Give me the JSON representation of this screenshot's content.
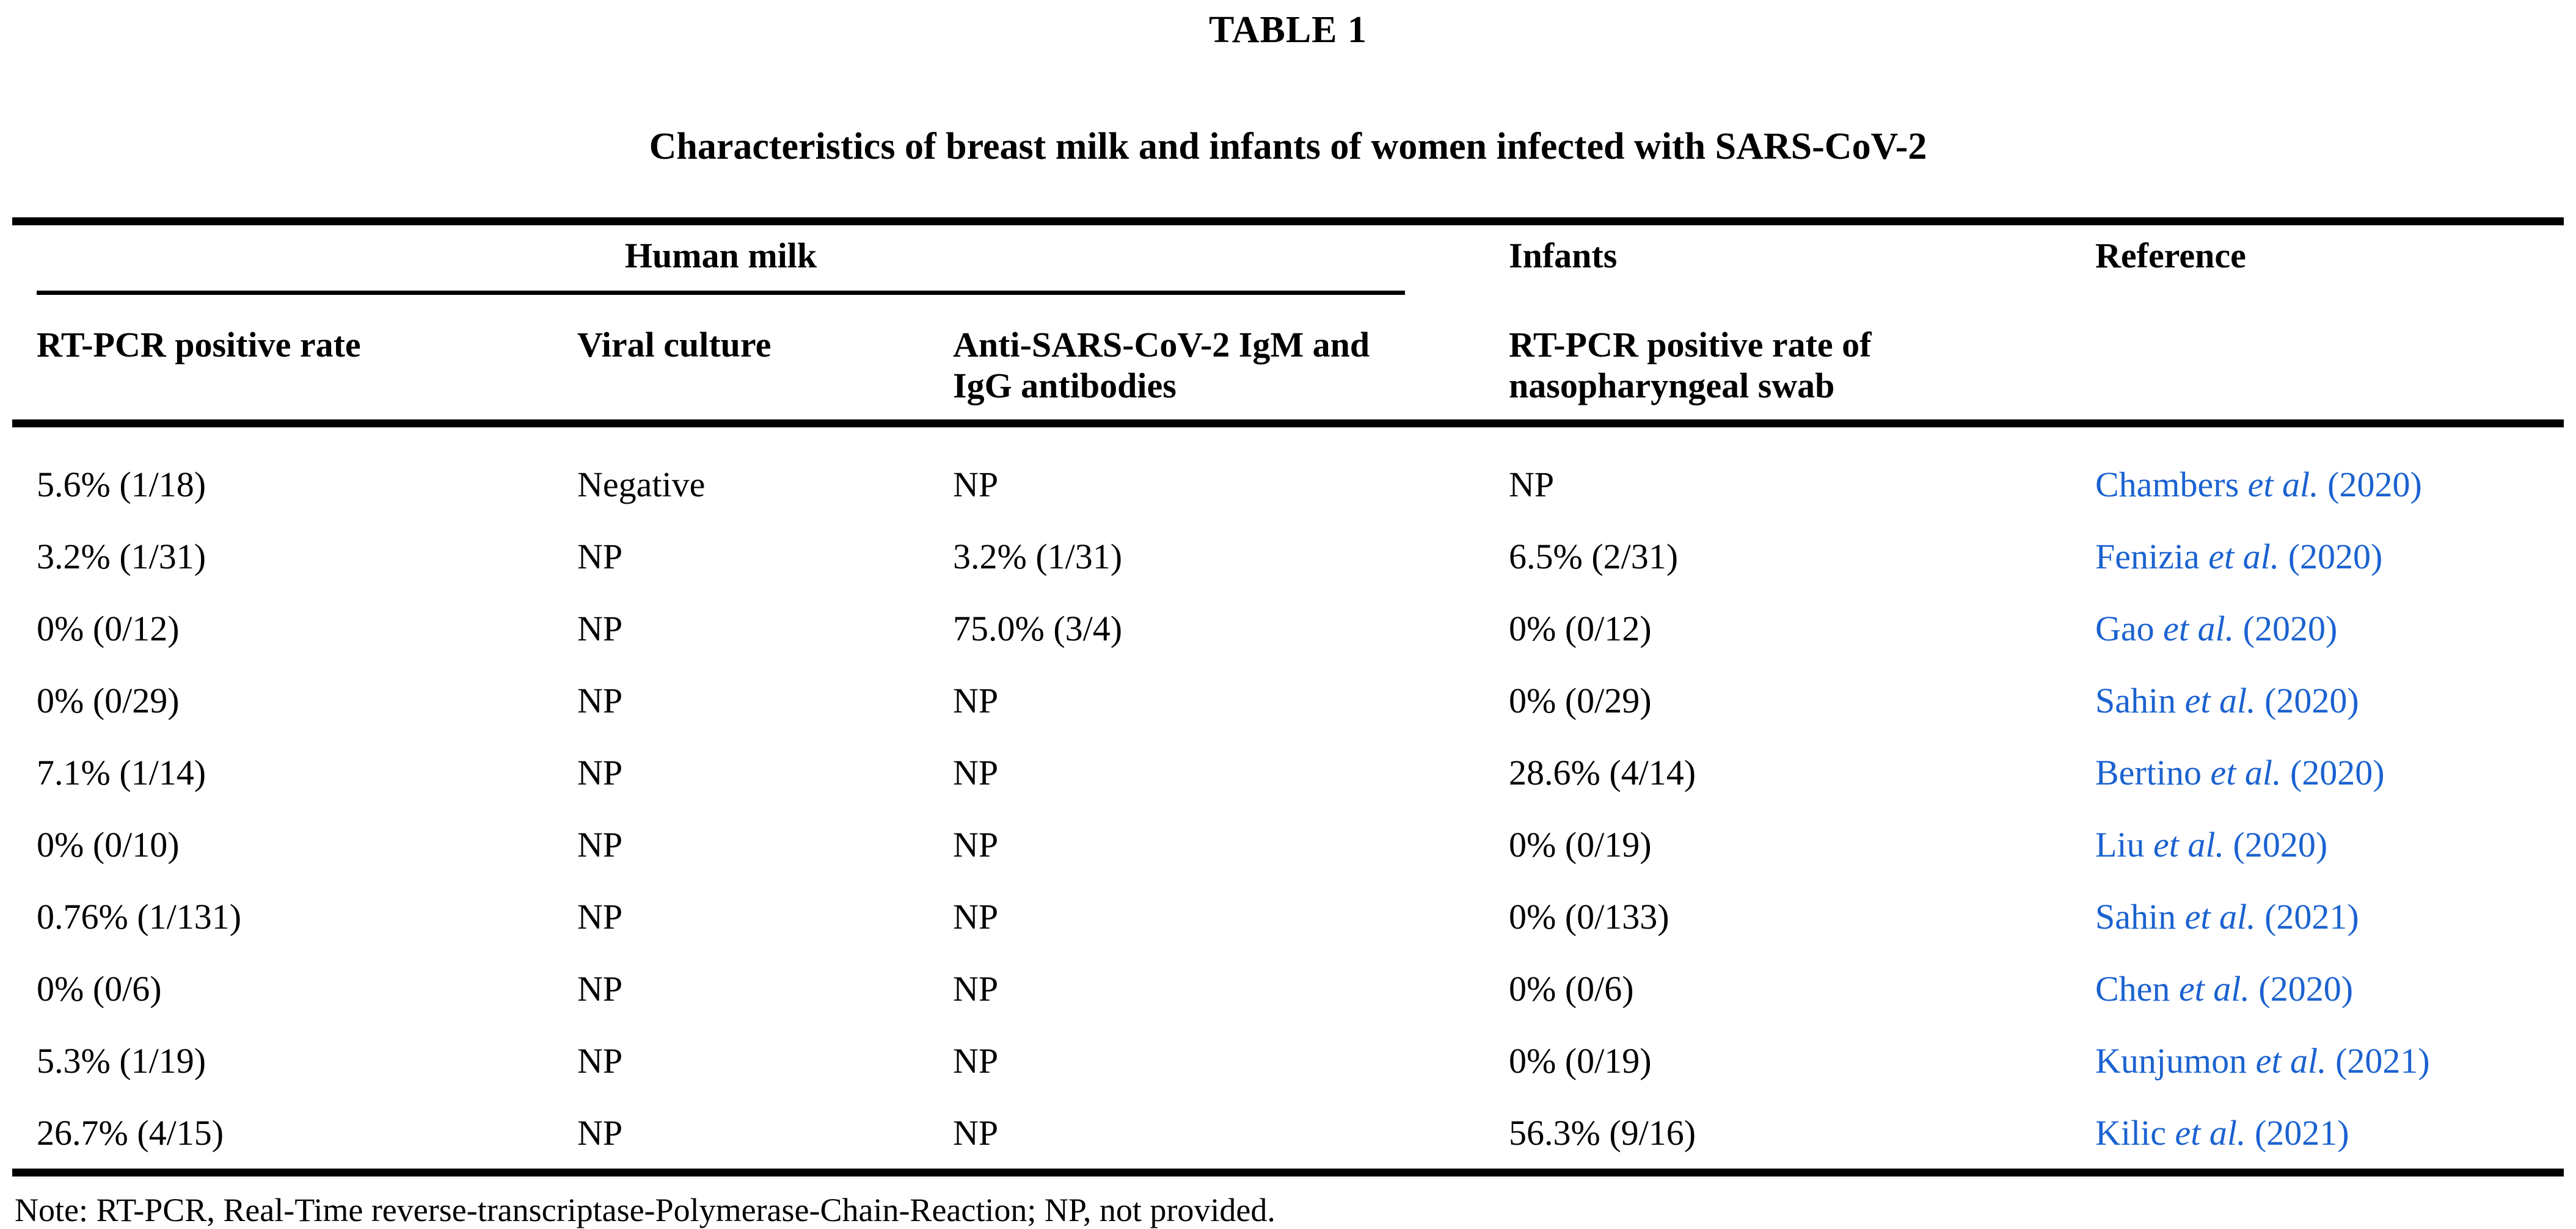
{
  "page": {
    "title": "TABLE 1",
    "caption": "Characteristics of breast milk and infants of women infected with SARS-CoV-2",
    "note": "Note: RT-PCR, Real-Time reverse-transcriptase-Polymerase-Chain-Reaction; NP, not provided."
  },
  "colors": {
    "reference_link_blue": "#1b62d0",
    "text": "#000000",
    "rule": "#000000",
    "background": "#ffffff"
  },
  "table": {
    "group_headers": {
      "human_milk": "Human milk",
      "infants": "Infants",
      "reference": "Reference"
    },
    "column_headers": {
      "milk_pcr": "RT-PCR positive rate",
      "viral_culture": "Viral culture",
      "antibodies": "Anti-SARS-CoV-2 IgM and IgG antibodies",
      "infant_pcr": "RT-PCR positive rate of nasopharyngeal swab"
    },
    "rows": [
      {
        "milk_pcr": "5.6% (1/18)",
        "viral_culture": "Negative",
        "antibodies": "NP",
        "infant_pcr": "NP",
        "ref_authors": "Chambers",
        "ref_etal": "et al.",
        "ref_year": "(2020)"
      },
      {
        "milk_pcr": "3.2% (1/31)",
        "viral_culture": "NP",
        "antibodies": "3.2% (1/31)",
        "infant_pcr": "6.5% (2/31)",
        "ref_authors": "Fenizia",
        "ref_etal": "et al.",
        "ref_year": "(2020)"
      },
      {
        "milk_pcr": "0% (0/12)",
        "viral_culture": "NP",
        "antibodies": "75.0% (3/4)",
        "infant_pcr": "0% (0/12)",
        "ref_authors": "Gao",
        "ref_etal": "et al.",
        "ref_year": "(2020)"
      },
      {
        "milk_pcr": "0% (0/29)",
        "viral_culture": "NP",
        "antibodies": "NP",
        "infant_pcr": "0% (0/29)",
        "ref_authors": "Sahin",
        "ref_etal": "et al.",
        "ref_year": "(2020)"
      },
      {
        "milk_pcr": "7.1% (1/14)",
        "viral_culture": "NP",
        "antibodies": "NP",
        "infant_pcr": "28.6% (4/14)",
        "ref_authors": "Bertino",
        "ref_etal": "et al.",
        "ref_year": "(2020)"
      },
      {
        "milk_pcr": "0% (0/10)",
        "viral_culture": "NP",
        "antibodies": "NP",
        "infant_pcr": "0% (0/19)",
        "ref_authors": "Liu",
        "ref_etal": "et al.",
        "ref_year": "(2020)"
      },
      {
        "milk_pcr": "0.76% (1/131)",
        "viral_culture": "NP",
        "antibodies": "NP",
        "infant_pcr": "0% (0/133)",
        "ref_authors": "Sahin",
        "ref_etal": "et al.",
        "ref_year": "(2021)"
      },
      {
        "milk_pcr": "0% (0/6)",
        "viral_culture": "NP",
        "antibodies": "NP",
        "infant_pcr": "0% (0/6)",
        "ref_authors": "Chen",
        "ref_etal": "et al.",
        "ref_year": "(2020)"
      },
      {
        "milk_pcr": "5.3% (1/19)",
        "viral_culture": "NP",
        "antibodies": "NP",
        "infant_pcr": "0% (0/19)",
        "ref_authors": "Kunjumon",
        "ref_etal": "et al.",
        "ref_year": "(2021)"
      },
      {
        "milk_pcr": "26.7% (4/15)",
        "viral_culture": "NP",
        "antibodies": "NP",
        "infant_pcr": "56.3% (9/16)",
        "ref_authors": "Kilic",
        "ref_etal": "et al.",
        "ref_year": "(2021)"
      }
    ]
  }
}
